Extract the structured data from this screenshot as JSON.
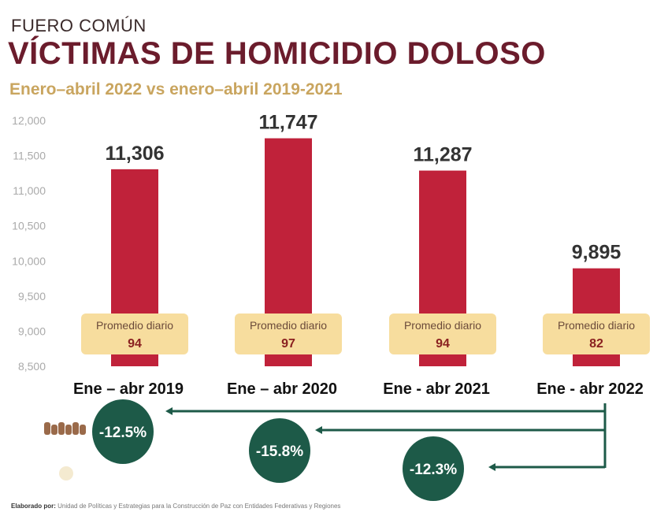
{
  "header": {
    "kicker": "FUERO COMÚN",
    "title": "VÍCTIMAS  DE HOMICIDIO DOLOSO",
    "subtitle": "Enero–abril 2022 vs enero–abril 2019-2021"
  },
  "footer": {
    "label": "Elaborado por:",
    "text": "Unidad de Políticas y Estrategias para la Construcción de Paz con Entidades Federativas y Regiones"
  },
  "colors": {
    "bar": "#c0223a",
    "title": "#6b1c2c",
    "accent": "#c9a55f",
    "box": "#f7dd9e",
    "circle": "#1d5a48"
  },
  "chart_data": {
    "type": "bar",
    "title": "VÍCTIMAS DE HOMICIDIO DOLOSO",
    "categories": [
      "Ene – abr 2019",
      "Ene – abr 2020",
      "Ene - abr 2021",
      "Ene - abr 2022"
    ],
    "values": [
      11306,
      11747,
      11287,
      9895
    ],
    "value_labels": [
      "11,306",
      "11,747",
      "11,287",
      "9,895"
    ],
    "daily_avg_label": "Promedio diario",
    "daily_avg": [
      "94",
      "97",
      "94",
      "82"
    ],
    "ylim": [
      8500,
      12000
    ],
    "yticks": [
      8500,
      9000,
      9500,
      10000,
      10500,
      11000,
      11500,
      12000
    ],
    "ytick_labels": [
      "8,500",
      "9,000",
      "9,500",
      "10,000",
      "10,500",
      "11,000",
      "11,500",
      "12,000"
    ],
    "comparisons": [
      {
        "from": "Ene - abr 2022",
        "to": "Ene – abr 2019",
        "label": "-12.5%"
      },
      {
        "from": "Ene - abr 2022",
        "to": "Ene – abr 2020",
        "label": "-15.8%"
      },
      {
        "from": "Ene - abr 2022",
        "to": "Ene - abr 2021",
        "label": "-12.3%"
      }
    ]
  }
}
